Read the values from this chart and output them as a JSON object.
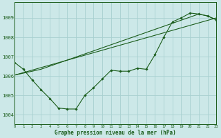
{
  "xlabel": "Graphe pression niveau de la mer (hPa)",
  "bg_color": "#cce8e8",
  "grid_color": "#a8d0d0",
  "line_color": "#1a5c1a",
  "marker_color": "#1a5c1a",
  "x_min": 0,
  "x_max": 23,
  "y_min": 1003.5,
  "y_max": 1009.8,
  "series1_x": [
    0,
    1,
    2,
    3,
    4,
    5,
    6,
    7,
    8,
    9,
    10,
    11,
    12,
    13,
    14,
    15,
    16,
    17,
    18,
    19,
    20,
    21,
    22,
    23
  ],
  "series1_y": [
    1006.7,
    1006.35,
    1005.8,
    1005.3,
    1004.85,
    1004.35,
    1004.3,
    1004.3,
    1005.0,
    1005.4,
    1005.85,
    1006.3,
    1006.25,
    1006.25,
    1006.4,
    1006.35,
    1007.1,
    1008.0,
    1008.8,
    1009.0,
    1009.25,
    1009.2,
    1009.1,
    1008.9
  ],
  "series2_x": [
    0,
    23
  ],
  "series2_y": [
    1006.05,
    1009.0
  ],
  "series3_x": [
    0,
    3,
    21,
    22,
    23
  ],
  "series3_y": [
    1006.05,
    1006.35,
    1009.2,
    1009.1,
    1008.9
  ],
  "yticks": [
    1004,
    1005,
    1006,
    1007,
    1008,
    1009
  ],
  "xticks": [
    0,
    1,
    2,
    3,
    4,
    5,
    6,
    7,
    8,
    9,
    10,
    11,
    12,
    13,
    14,
    15,
    16,
    17,
    18,
    19,
    20,
    21,
    22,
    23
  ]
}
